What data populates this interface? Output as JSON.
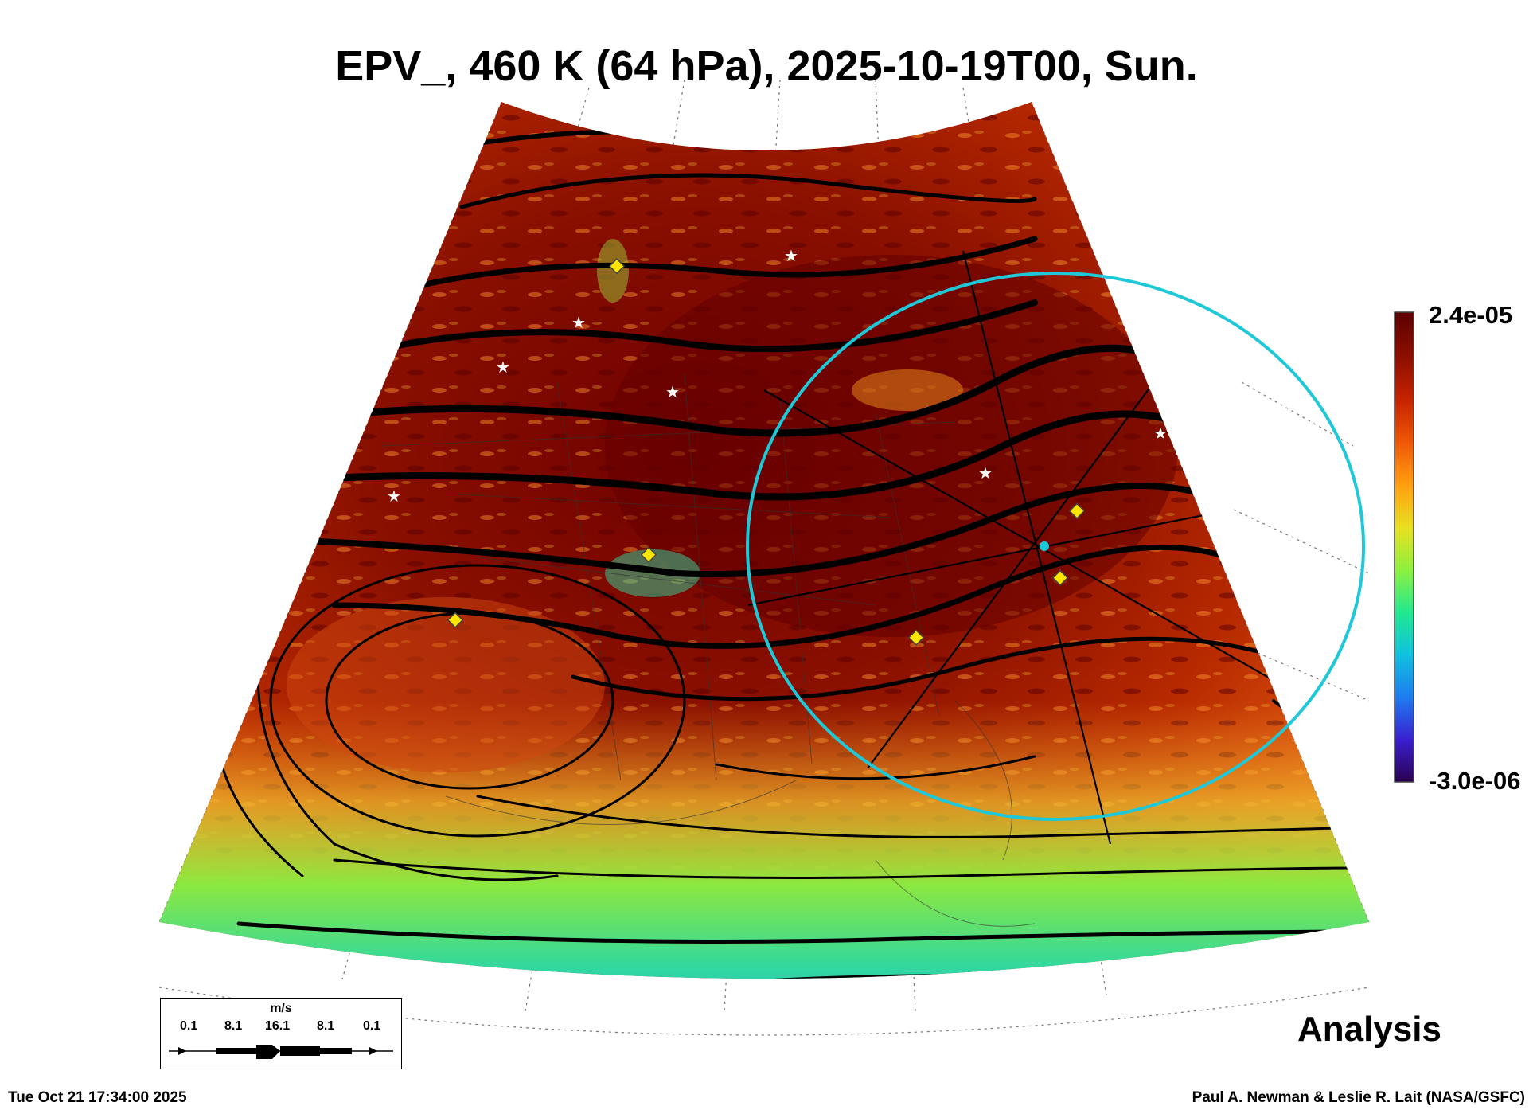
{
  "title": "EPV_, 460 K (64 hPa), 2025-10-19T00, Sun.",
  "colorbar": {
    "max_label": "2.4e-05",
    "min_label": "-3.0e-06",
    "stops": [
      "#2a0050",
      "#3a20d0",
      "#1e7cf0",
      "#10c0e0",
      "#20e890",
      "#8cf040",
      "#e8e020",
      "#ffa010",
      "#f05a08",
      "#c82400",
      "#901000",
      "#5a0000"
    ]
  },
  "legend": {
    "unit": "m/s",
    "values": [
      "0.1",
      "8.1",
      "16.1",
      "8.1",
      "0.1"
    ]
  },
  "ring_color": "#1fc8d8",
  "label_analysis": "Analysis",
  "footer_left": "Tue Oct 21 17:34:00 2025",
  "footer_right": "Paul A. Newman & Leslie R. Lait (NASA/GSFC)"
}
